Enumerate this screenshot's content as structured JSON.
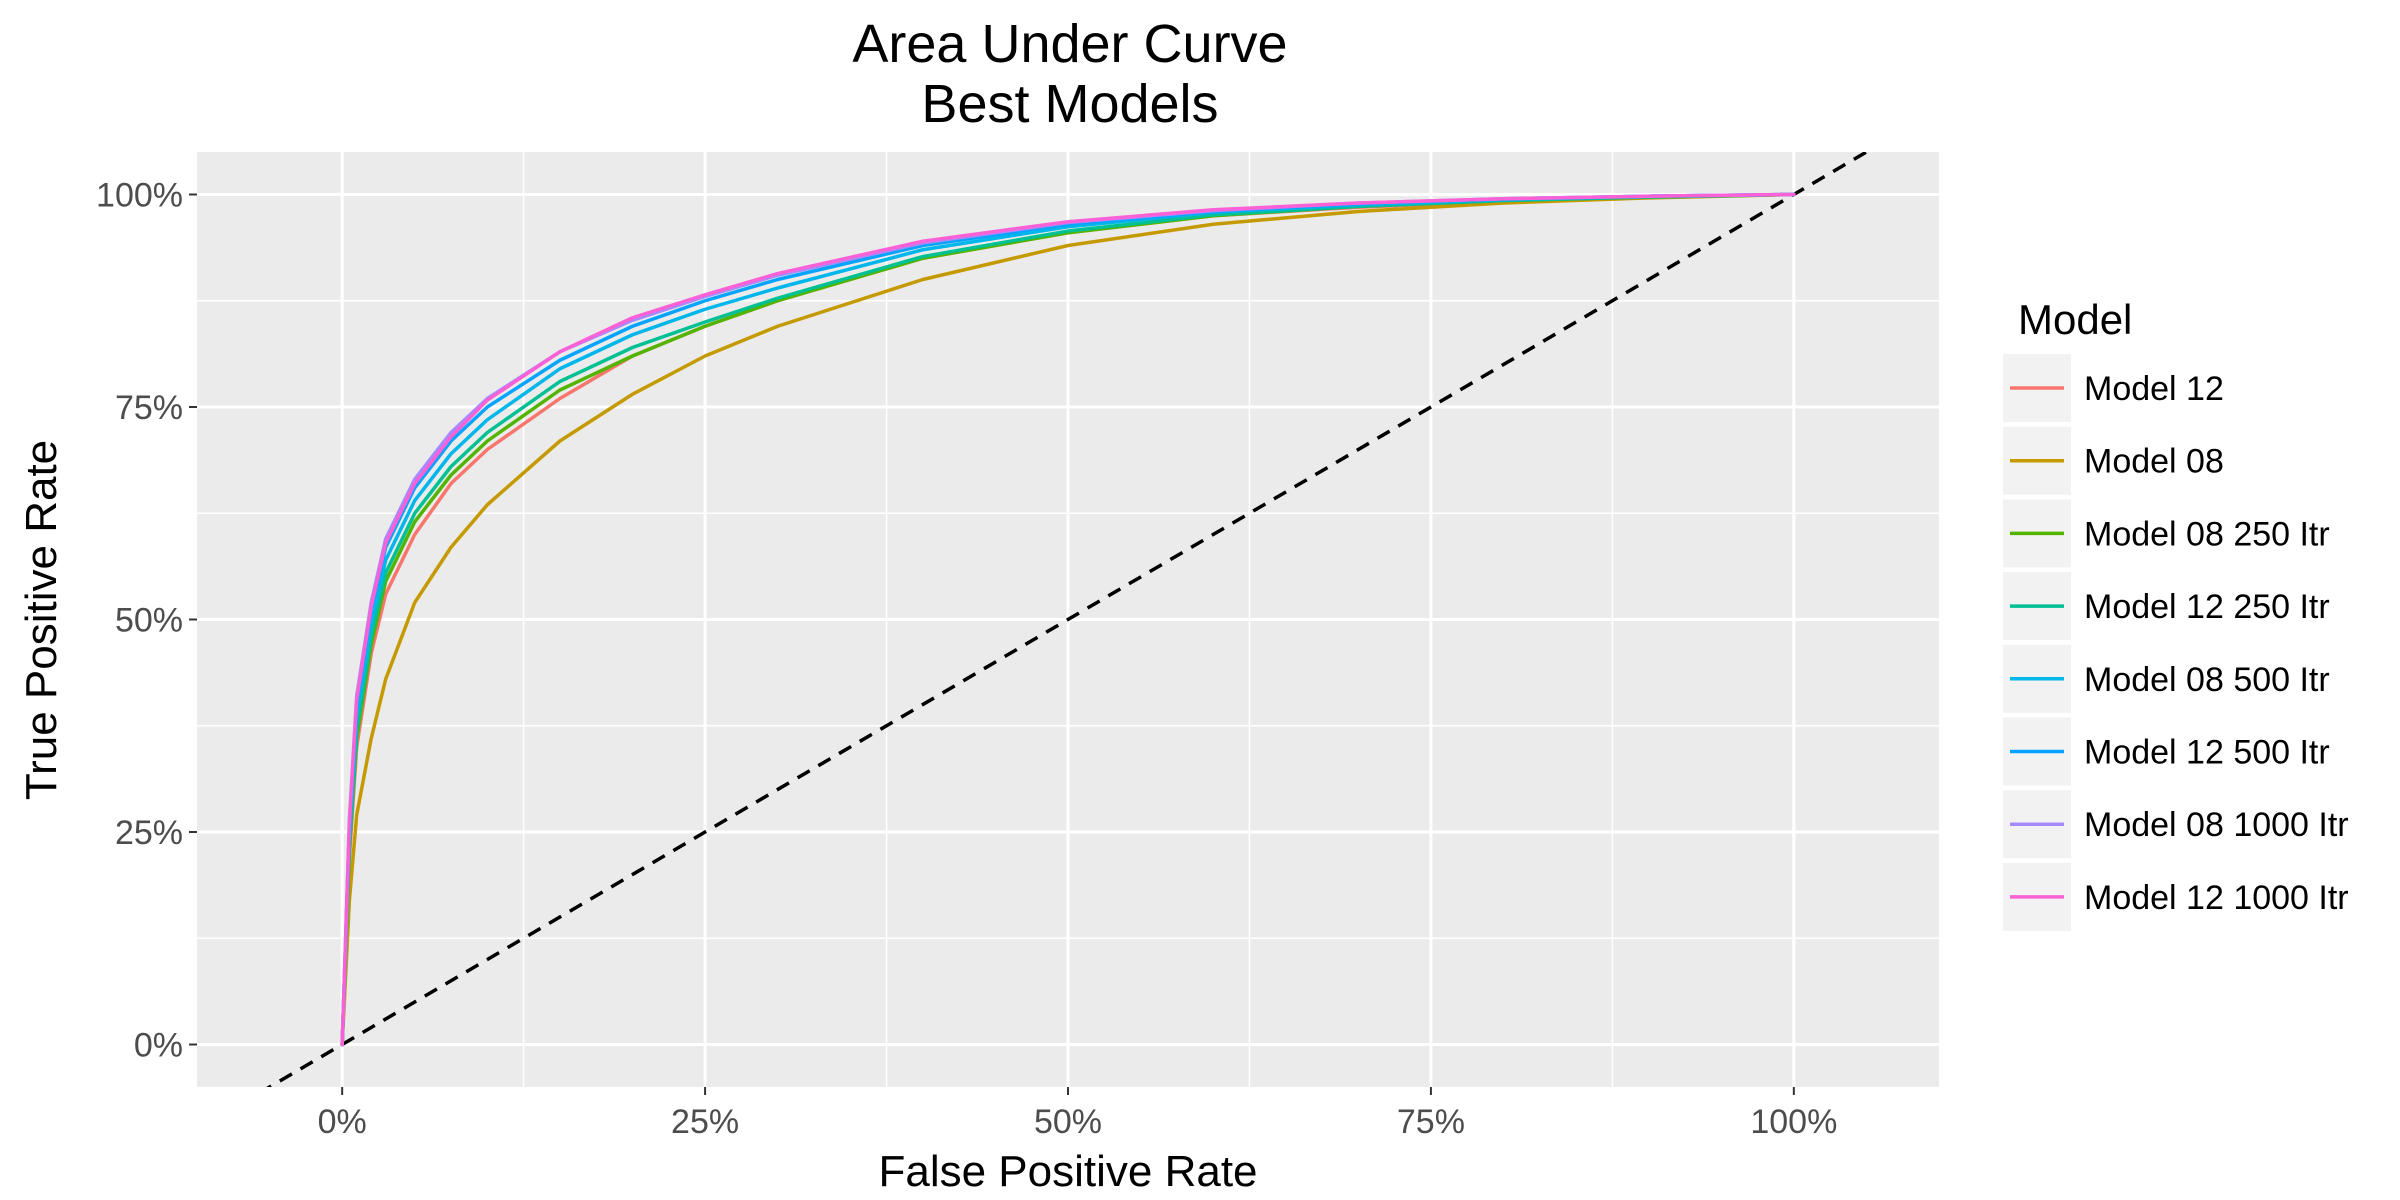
{
  "chart_data": {
    "type": "line",
    "title": "Area Under Curve",
    "subtitle": "Best Models",
    "xlabel": "False Positive Rate",
    "ylabel": "True Positive Rate",
    "xlim": [
      -0.1,
      1.1
    ],
    "ylim": [
      -0.05,
      1.05
    ],
    "x_ticks": [
      0,
      0.25,
      0.5,
      0.75,
      1
    ],
    "x_tick_labels": [
      "0%",
      "25%",
      "50%",
      "75%",
      "100%"
    ],
    "y_ticks": [
      0,
      0.25,
      0.5,
      0.75,
      1
    ],
    "y_tick_labels": [
      "0%",
      "25%",
      "50%",
      "75%",
      "100%"
    ],
    "grid": true,
    "panel_background": "#ebebeb",
    "legend": {
      "title": "Model",
      "position": "right"
    },
    "reference_line": {
      "style": "dashed",
      "color": "#000000",
      "x": [
        -0.1,
        1.1
      ],
      "y": [
        -0.1,
        1.1
      ]
    },
    "series": [
      {
        "name": "Model 12",
        "color": "#F8766D",
        "x": [
          0,
          0.005,
          0.01,
          0.02,
          0.03,
          0.05,
          0.075,
          0.1,
          0.15,
          0.2,
          0.25,
          0.3,
          0.4,
          0.5,
          0.6,
          0.7,
          0.8,
          0.9,
          1
        ],
        "y": [
          0,
          0.22,
          0.35,
          0.46,
          0.53,
          0.6,
          0.66,
          0.7,
          0.76,
          0.81,
          0.845,
          0.875,
          0.925,
          0.955,
          0.975,
          0.985,
          0.992,
          0.997,
          1
        ]
      },
      {
        "name": "Model 08",
        "color": "#C49A00",
        "x": [
          0,
          0.005,
          0.01,
          0.02,
          0.03,
          0.05,
          0.075,
          0.1,
          0.15,
          0.2,
          0.25,
          0.3,
          0.4,
          0.5,
          0.6,
          0.7,
          0.8,
          0.9,
          1
        ],
        "y": [
          0,
          0.17,
          0.27,
          0.36,
          0.43,
          0.52,
          0.585,
          0.635,
          0.71,
          0.765,
          0.81,
          0.845,
          0.9,
          0.94,
          0.965,
          0.98,
          0.99,
          0.996,
          1
        ]
      },
      {
        "name": "Model 08 250 Itr",
        "color": "#53B400",
        "x": [
          0,
          0.005,
          0.01,
          0.02,
          0.03,
          0.05,
          0.075,
          0.1,
          0.15,
          0.2,
          0.25,
          0.3,
          0.4,
          0.5,
          0.6,
          0.7,
          0.8,
          0.9,
          1
        ],
        "y": [
          0,
          0.23,
          0.36,
          0.47,
          0.545,
          0.615,
          0.67,
          0.71,
          0.77,
          0.81,
          0.845,
          0.875,
          0.925,
          0.955,
          0.975,
          0.986,
          0.993,
          0.997,
          1
        ]
      },
      {
        "name": "Model 12 250 Itr",
        "color": "#00C094",
        "x": [
          0,
          0.005,
          0.01,
          0.02,
          0.03,
          0.05,
          0.075,
          0.1,
          0.15,
          0.2,
          0.25,
          0.3,
          0.4,
          0.5,
          0.6,
          0.7,
          0.8,
          0.9,
          1
        ],
        "y": [
          0,
          0.235,
          0.37,
          0.48,
          0.555,
          0.625,
          0.68,
          0.72,
          0.78,
          0.82,
          0.85,
          0.878,
          0.927,
          0.957,
          0.976,
          0.986,
          0.993,
          0.997,
          1
        ]
      },
      {
        "name": "Model 08 500 Itr",
        "color": "#00B6EB",
        "x": [
          0,
          0.005,
          0.01,
          0.02,
          0.03,
          0.05,
          0.075,
          0.1,
          0.15,
          0.2,
          0.25,
          0.3,
          0.4,
          0.5,
          0.6,
          0.7,
          0.8,
          0.9,
          1
        ],
        "y": [
          0,
          0.245,
          0.385,
          0.495,
          0.57,
          0.64,
          0.695,
          0.735,
          0.795,
          0.835,
          0.865,
          0.89,
          0.935,
          0.962,
          0.979,
          0.988,
          0.994,
          0.998,
          1
        ]
      },
      {
        "name": "Model 12 500 Itr",
        "color": "#06A4FF",
        "x": [
          0,
          0.005,
          0.01,
          0.02,
          0.03,
          0.05,
          0.075,
          0.1,
          0.15,
          0.2,
          0.25,
          0.3,
          0.4,
          0.5,
          0.6,
          0.7,
          0.8,
          0.9,
          1
        ],
        "y": [
          0,
          0.255,
          0.4,
          0.51,
          0.585,
          0.655,
          0.71,
          0.75,
          0.805,
          0.845,
          0.875,
          0.9,
          0.94,
          0.965,
          0.98,
          0.989,
          0.995,
          0.998,
          1
        ]
      },
      {
        "name": "Model 08 1000 Itr",
        "color": "#A58AFF",
        "x": [
          0,
          0.005,
          0.01,
          0.02,
          0.03,
          0.05,
          0.075,
          0.1,
          0.15,
          0.2,
          0.25,
          0.3,
          0.4,
          0.5,
          0.6,
          0.7,
          0.8,
          0.9,
          1
        ],
        "y": [
          0,
          0.265,
          0.41,
          0.52,
          0.595,
          0.665,
          0.72,
          0.76,
          0.815,
          0.852,
          0.88,
          0.905,
          0.943,
          0.967,
          0.981,
          0.99,
          0.995,
          0.998,
          1
        ]
      },
      {
        "name": "Model 12 1000 Itr",
        "color": "#FB61D7",
        "x": [
          0,
          0.005,
          0.01,
          0.02,
          0.03,
          0.05,
          0.075,
          0.1,
          0.15,
          0.2,
          0.25,
          0.3,
          0.4,
          0.5,
          0.6,
          0.7,
          0.8,
          0.9,
          1
        ],
        "y": [
          0,
          0.26,
          0.405,
          0.515,
          0.59,
          0.66,
          0.715,
          0.758,
          0.815,
          0.855,
          0.882,
          0.907,
          0.945,
          0.968,
          0.982,
          0.99,
          0.995,
          0.998,
          1
        ]
      }
    ]
  }
}
